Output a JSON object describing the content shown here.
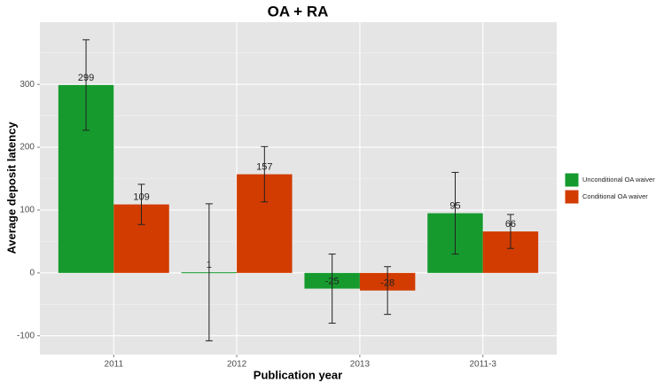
{
  "chart_data": {
    "type": "bar",
    "title": "OA + RA",
    "x_label": "Publication year",
    "y_label": "Average deposit latency",
    "categories": [
      "2011",
      "2012",
      "2013",
      "2011-3"
    ],
    "series": [
      {
        "name": "Unconditional OA waiver",
        "color": "#169a2e",
        "values": [
          299,
          1,
          -25,
          95
        ],
        "errors": [
          72,
          109,
          55,
          65
        ]
      },
      {
        "name": "Conditional OA waiver",
        "color": "#d23c00",
        "values": [
          109,
          157,
          -28,
          66
        ],
        "errors": [
          32,
          44,
          38,
          27
        ]
      }
    ],
    "ylim": [
      -130,
      399
    ],
    "yticks": [
      -100,
      0,
      100,
      200,
      300
    ],
    "grid": true,
    "legend": "right"
  }
}
